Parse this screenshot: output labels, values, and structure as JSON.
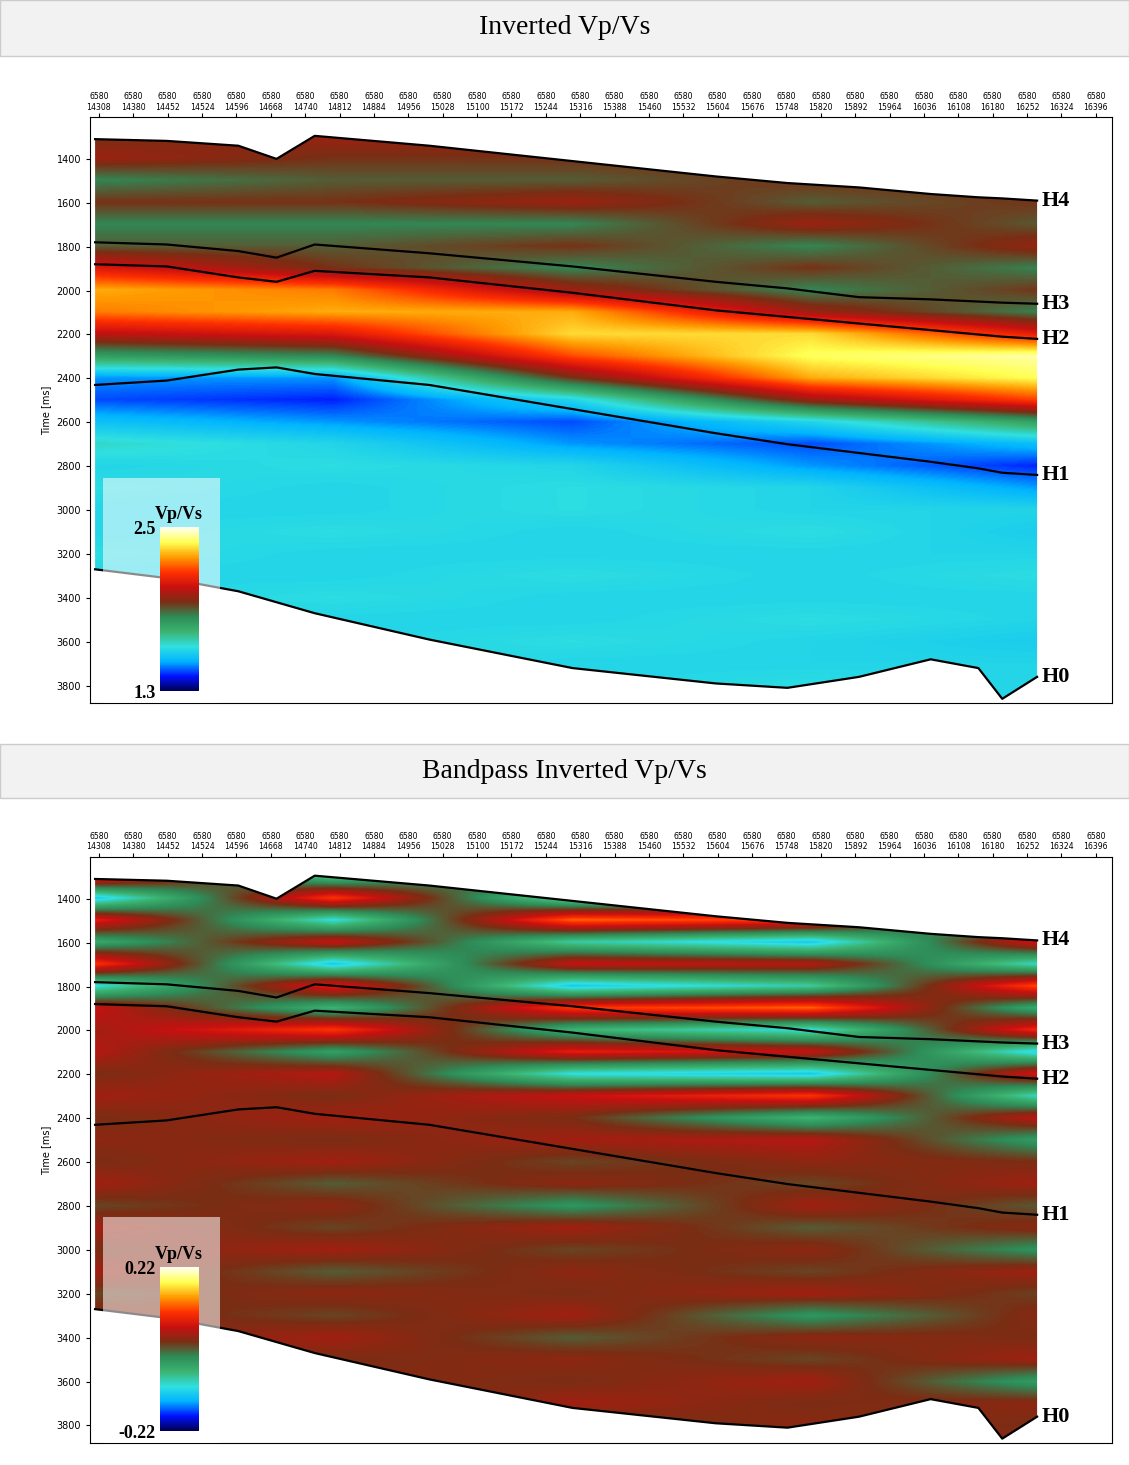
{
  "chart_data": [
    {
      "type": "heatmap",
      "title": "Inverted Vp/Vs",
      "ylabel": "Time [ms]",
      "xlim": [
        14290,
        16430
      ],
      "ylim": [
        3880,
        1210
      ],
      "xticks": [
        {
          "value": 14308,
          "label": "6580\n14308"
        },
        {
          "value": 14380,
          "label": "6580\n14380"
        },
        {
          "value": 14452,
          "label": "6580\n14452"
        },
        {
          "value": 14524,
          "label": "6580\n14524"
        },
        {
          "value": 14596,
          "label": "6580\n14596"
        },
        {
          "value": 14668,
          "label": "6580\n14668"
        },
        {
          "value": 14740,
          "label": "6580\n14740"
        },
        {
          "value": 14812,
          "label": "6580\n14812"
        },
        {
          "value": 14884,
          "label": "6580\n14884"
        },
        {
          "value": 14956,
          "label": "6580\n14956"
        },
        {
          "value": 15028,
          "label": "6580\n15028"
        },
        {
          "value": 15100,
          "label": "6580\n15100"
        },
        {
          "value": 15172,
          "label": "6580\n15172"
        },
        {
          "value": 15244,
          "label": "6580\n15244"
        },
        {
          "value": 15316,
          "label": "6580\n15316"
        },
        {
          "value": 15388,
          "label": "6580\n15388"
        },
        {
          "value": 15460,
          "label": "6580\n15460"
        },
        {
          "value": 15532,
          "label": "6580\n15532"
        },
        {
          "value": 15604,
          "label": "6580\n15604"
        },
        {
          "value": 15676,
          "label": "6580\n15676"
        },
        {
          "value": 15748,
          "label": "6580\n15748"
        },
        {
          "value": 15820,
          "label": "6580\n15820"
        },
        {
          "value": 15892,
          "label": "6580\n15892"
        },
        {
          "value": 15964,
          "label": "6580\n15964"
        },
        {
          "value": 16036,
          "label": "6580\n16036"
        },
        {
          "value": 16108,
          "label": "6580\n16108"
        },
        {
          "value": 16180,
          "label": "6580\n16180"
        },
        {
          "value": 16252,
          "label": "6580\n16252"
        },
        {
          "value": 16324,
          "label": "6580\n16324"
        },
        {
          "value": 16396,
          "label": "6580\n16396"
        }
      ],
      "yticks": [
        1400,
        1600,
        1800,
        2000,
        2200,
        2400,
        2600,
        2800,
        3000,
        3200,
        3400,
        3600,
        3800
      ],
      "colors": [
        "#00004a",
        "#0010ff",
        "#00b4ff",
        "#30e0e0",
        "#3cb371",
        "#2e8b57",
        "#7a2e14",
        "#c81010",
        "#ff3000",
        "#ff9a00",
        "#ffff50",
        "#fffff0"
      ],
      "colorbar": {
        "label": "Vp/Vs",
        "range": [
          1.3,
          2.5
        ],
        "ticks": [
          1.3,
          2.5
        ]
      },
      "x": [
        14300,
        14800,
        15300,
        15800,
        16300
      ],
      "y": [
        1300,
        1400,
        1500,
        1600,
        1700,
        1800,
        1900,
        2000,
        2100,
        2200,
        2300,
        2400,
        2500,
        2600,
        2700,
        2800,
        2900,
        3000,
        3100,
        3200,
        3300,
        3400,
        3500,
        3600,
        3700,
        3800,
        3900
      ],
      "cells": [
        [
          1.95,
          2.0,
          2.0,
          1.95,
          1.95
        ],
        [
          2.0,
          1.95,
          1.95,
          1.95,
          1.95
        ],
        [
          1.85,
          1.9,
          1.9,
          1.95,
          1.95
        ],
        [
          1.95,
          1.95,
          2.0,
          1.9,
          1.95
        ],
        [
          1.85,
          1.85,
          1.85,
          2.0,
          1.9
        ],
        [
          1.9,
          1.9,
          1.95,
          1.85,
          2.0
        ],
        [
          2.1,
          1.95,
          1.85,
          1.95,
          1.85
        ],
        [
          2.3,
          2.25,
          2.0,
          1.85,
          1.95
        ],
        [
          2.25,
          2.3,
          2.3,
          2.0,
          1.85
        ],
        [
          2.05,
          2.1,
          2.35,
          2.35,
          2.1
        ],
        [
          1.8,
          1.85,
          2.2,
          2.4,
          2.45
        ],
        [
          1.5,
          1.5,
          1.95,
          2.3,
          2.4
        ],
        [
          1.45,
          1.42,
          1.6,
          2.0,
          2.2
        ],
        [
          1.55,
          1.5,
          1.45,
          1.6,
          1.8
        ],
        [
          1.65,
          1.6,
          1.5,
          1.45,
          1.55
        ],
        [
          1.6,
          1.62,
          1.6,
          1.5,
          1.42
        ],
        [
          1.62,
          1.6,
          1.62,
          1.6,
          1.5
        ],
        [
          1.6,
          1.6,
          1.62,
          1.6,
          1.6
        ],
        [
          1.6,
          1.62,
          1.6,
          1.62,
          1.58
        ],
        [
          1.62,
          1.6,
          1.6,
          1.6,
          1.6
        ],
        [
          1.6,
          1.6,
          1.62,
          1.6,
          1.62
        ],
        [
          1.6,
          1.62,
          1.6,
          1.6,
          1.6
        ],
        [
          1.62,
          1.6,
          1.6,
          1.62,
          1.6
        ],
        [
          1.6,
          1.6,
          1.62,
          1.6,
          1.58
        ],
        [
          1.6,
          1.62,
          1.6,
          1.6,
          1.6
        ],
        [
          1.62,
          1.6,
          1.6,
          1.62,
          1.6
        ],
        [
          1.6,
          1.6,
          1.6,
          1.6,
          1.6
        ]
      ],
      "horizon_x": [
        14300,
        14450,
        14600,
        14680,
        14760,
        15000,
        15300,
        15600,
        15750,
        15900,
        16050,
        16150,
        16200,
        16273
      ],
      "horizons": [
        {
          "name": "H4",
          "values": [
            1310,
            1318,
            1340,
            1400,
            1295,
            1340,
            1410,
            1480,
            1510,
            1530,
            1560,
            1575,
            1580,
            1590
          ]
        },
        {
          "name": "H3",
          "values": [
            1780,
            1790,
            1820,
            1850,
            1790,
            1830,
            1890,
            1960,
            1990,
            2030,
            2040,
            2050,
            2055,
            2060
          ]
        },
        {
          "name": "H2",
          "values": [
            1880,
            1890,
            1940,
            1960,
            1910,
            1940,
            2010,
            2090,
            2120,
            2150,
            2180,
            2200,
            2210,
            2220
          ]
        },
        {
          "name": "H1",
          "values": [
            2430,
            2410,
            2360,
            2350,
            2380,
            2430,
            2540,
            2650,
            2700,
            2740,
            2780,
            2810,
            2830,
            2840
          ]
        },
        {
          "name": "H0",
          "values": [
            3270,
            3310,
            3370,
            3420,
            3470,
            3590,
            3720,
            3790,
            3810,
            3760,
            3680,
            3720,
            3860,
            3760
          ]
        }
      ]
    },
    {
      "type": "heatmap",
      "title": "Bandpass Inverted Vp/Vs",
      "ylabel": "Time [ms]",
      "xlim": [
        14290,
        16430
      ],
      "ylim": [
        3880,
        1210
      ],
      "xticks": [
        {
          "value": 14308,
          "label": "6580\n14308"
        },
        {
          "value": 14380,
          "label": "6580\n14380"
        },
        {
          "value": 14452,
          "label": "6580\n14452"
        },
        {
          "value": 14524,
          "label": "6580\n14524"
        },
        {
          "value": 14596,
          "label": "6580\n14596"
        },
        {
          "value": 14668,
          "label": "6580\n14668"
        },
        {
          "value": 14740,
          "label": "6580\n14740"
        },
        {
          "value": 14812,
          "label": "6580\n14812"
        },
        {
          "value": 14884,
          "label": "6580\n14884"
        },
        {
          "value": 14956,
          "label": "6580\n14956"
        },
        {
          "value": 15028,
          "label": "6580\n15028"
        },
        {
          "value": 15100,
          "label": "6580\n15100"
        },
        {
          "value": 15172,
          "label": "6580\n15172"
        },
        {
          "value": 15244,
          "label": "6580\n15244"
        },
        {
          "value": 15316,
          "label": "6580\n15316"
        },
        {
          "value": 15388,
          "label": "6580\n15388"
        },
        {
          "value": 15460,
          "label": "6580\n15460"
        },
        {
          "value": 15532,
          "label": "6580\n15532"
        },
        {
          "value": 15604,
          "label": "6580\n15604"
        },
        {
          "value": 15676,
          "label": "6580\n15676"
        },
        {
          "value": 15748,
          "label": "6580\n15748"
        },
        {
          "value": 15820,
          "label": "6580\n15820"
        },
        {
          "value": 15892,
          "label": "6580\n15892"
        },
        {
          "value": 15964,
          "label": "6580\n15964"
        },
        {
          "value": 16036,
          "label": "6580\n16036"
        },
        {
          "value": 16108,
          "label": "6580\n16108"
        },
        {
          "value": 16180,
          "label": "6580\n16180"
        },
        {
          "value": 16252,
          "label": "6580\n16252"
        },
        {
          "value": 16324,
          "label": "6580\n16324"
        },
        {
          "value": 16396,
          "label": "6580\n16396"
        }
      ],
      "yticks": [
        1400,
        1600,
        1800,
        2000,
        2200,
        2400,
        2600,
        2800,
        3000,
        3200,
        3400,
        3600,
        3800
      ],
      "colors": [
        "#00004a",
        "#0010ff",
        "#00b4ff",
        "#30e0e0",
        "#3cb371",
        "#2e8b57",
        "#7a2e14",
        "#c81010",
        "#ff3000",
        "#ff9a00",
        "#ffff50",
        "#fffff0"
      ],
      "colorbar": {
        "label": "Vp/Vs",
        "range": [
          -0.22,
          0.22
        ],
        "ticks": [
          -0.22,
          0.22
        ]
      },
      "x": [
        14300,
        14800,
        15300,
        15800,
        16300
      ],
      "y": [
        1300,
        1400,
        1500,
        1600,
        1700,
        1800,
        1900,
        2000,
        2100,
        2200,
        2300,
        2400,
        2500,
        2600,
        2700,
        2800,
        2900,
        3000,
        3100,
        3200,
        3300,
        3400,
        3500,
        3600,
        3700,
        3800,
        3900
      ],
      "cells": [
        [
          0.1,
          -0.08,
          0.05,
          0.08,
          -0.05
        ],
        [
          -0.12,
          0.1,
          -0.1,
          -0.06,
          0.1
        ],
        [
          0.08,
          -0.1,
          0.12,
          0.1,
          -0.12
        ],
        [
          -0.05,
          0.06,
          -0.08,
          -0.12,
          0.08
        ],
        [
          0.1,
          -0.12,
          0.06,
          0.05,
          -0.1
        ],
        [
          -0.1,
          0.08,
          -0.12,
          -0.08,
          0.12
        ],
        [
          0.06,
          -0.06,
          0.1,
          0.12,
          -0.06
        ],
        [
          0.04,
          0.1,
          -0.06,
          -0.1,
          0.1
        ],
        [
          0.05,
          -0.04,
          0.08,
          0.06,
          -0.12
        ],
        [
          0.02,
          0.05,
          -0.1,
          -0.12,
          0.08
        ],
        [
          0.04,
          0.02,
          0.06,
          0.1,
          -0.1
        ],
        [
          0.02,
          0.04,
          0.02,
          -0.06,
          0.06
        ],
        [
          0.03,
          0.02,
          0.04,
          0.05,
          -0.04
        ],
        [
          0.02,
          0.04,
          0.01,
          0.03,
          0.02
        ],
        [
          0.04,
          0.0,
          0.03,
          0.01,
          0.04
        ],
        [
          0.01,
          0.03,
          -0.03,
          0.04,
          0.0
        ],
        [
          0.04,
          0.01,
          0.04,
          0.0,
          0.03
        ],
        [
          0.02,
          0.04,
          0.01,
          0.03,
          -0.03
        ],
        [
          0.04,
          0.0,
          0.03,
          0.01,
          0.04
        ],
        [
          0.01,
          0.03,
          0.02,
          0.04,
          0.01
        ],
        [
          0.03,
          0.01,
          0.04,
          -0.03,
          0.03
        ],
        [
          0.02,
          0.04,
          0.0,
          0.03,
          0.02
        ],
        [
          0.04,
          0.02,
          0.03,
          0.01,
          0.04
        ],
        [
          0.01,
          0.03,
          0.02,
          0.04,
          -0.04
        ],
        [
          0.03,
          0.0,
          0.04,
          0.02,
          0.03
        ],
        [
          0.02,
          0.03,
          0.01,
          0.03,
          0.02
        ],
        [
          0.03,
          0.02,
          0.03,
          0.02,
          0.03
        ]
      ],
      "horizon_x": [
        14300,
        14450,
        14600,
        14680,
        14760,
        15000,
        15300,
        15600,
        15750,
        15900,
        16050,
        16150,
        16200,
        16273
      ],
      "horizons": [
        {
          "name": "H4",
          "values": [
            1310,
            1318,
            1340,
            1400,
            1295,
            1340,
            1410,
            1480,
            1510,
            1530,
            1560,
            1575,
            1580,
            1590
          ]
        },
        {
          "name": "H3",
          "values": [
            1780,
            1790,
            1820,
            1850,
            1790,
            1830,
            1890,
            1960,
            1990,
            2030,
            2040,
            2050,
            2055,
            2060
          ]
        },
        {
          "name": "H2",
          "values": [
            1880,
            1890,
            1940,
            1960,
            1910,
            1940,
            2010,
            2090,
            2120,
            2150,
            2180,
            2200,
            2210,
            2220
          ]
        },
        {
          "name": "H1",
          "values": [
            2430,
            2410,
            2360,
            2350,
            2380,
            2430,
            2540,
            2650,
            2700,
            2740,
            2780,
            2810,
            2830,
            2840
          ]
        },
        {
          "name": "H0",
          "values": [
            3270,
            3310,
            3370,
            3420,
            3470,
            3590,
            3720,
            3790,
            3810,
            3760,
            3680,
            3720,
            3860,
            3760
          ]
        }
      ]
    }
  ]
}
